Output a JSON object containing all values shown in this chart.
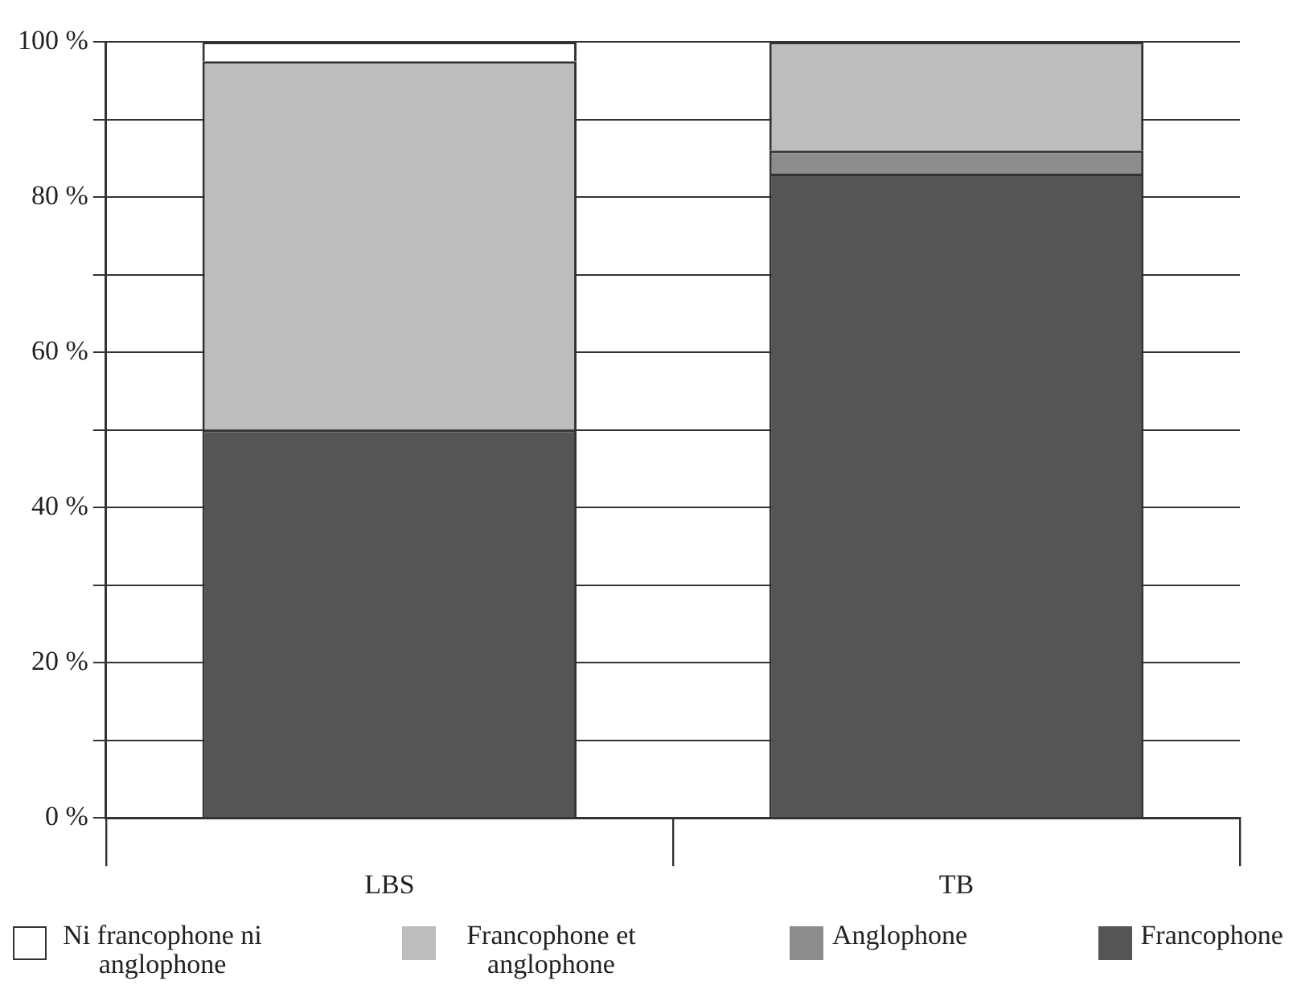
{
  "chart_data": {
    "type": "bar",
    "stacked": true,
    "categories": [
      "LBS",
      "TB"
    ],
    "series": [
      {
        "name": "Francophone",
        "color": "#555555",
        "values": [
          50,
          83
        ]
      },
      {
        "name": "Anglophone",
        "color": "#8c8c8c",
        "values": [
          0,
          3
        ]
      },
      {
        "name": "Francophone et anglophone",
        "color": "#bdbdbd",
        "values": [
          47.5,
          14
        ]
      },
      {
        "name": "Ni francophone ni anglophone",
        "color": "#ffffff",
        "values": [
          2.5,
          0
        ]
      }
    ],
    "ylim": [
      0,
      100
    ],
    "yticks": [
      {
        "value": 0,
        "label": "0 %"
      },
      {
        "value": 10,
        "label": null
      },
      {
        "value": 20,
        "label": "20 %"
      },
      {
        "value": 30,
        "label": null
      },
      {
        "value": 40,
        "label": "40 %"
      },
      {
        "value": 50,
        "label": null
      },
      {
        "value": 60,
        "label": "60 %"
      },
      {
        "value": 70,
        "label": null
      },
      {
        "value": 80,
        "label": "80 %"
      },
      {
        "value": 90,
        "label": null
      },
      {
        "value": 100,
        "label": "100 %"
      }
    ],
    "grid": "y",
    "legend": "bottom"
  }
}
